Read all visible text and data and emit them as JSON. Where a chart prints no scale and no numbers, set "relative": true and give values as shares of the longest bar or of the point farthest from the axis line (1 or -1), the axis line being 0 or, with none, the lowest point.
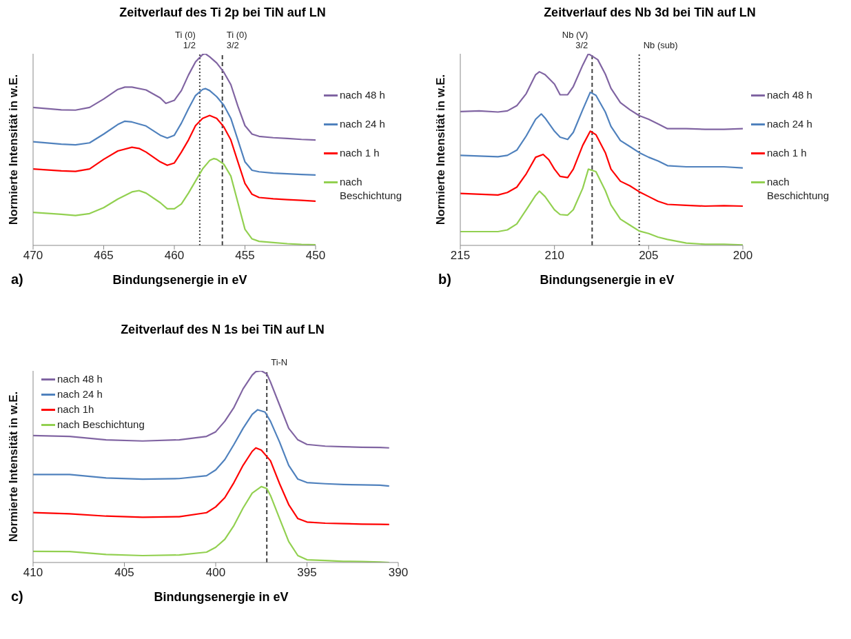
{
  "chart_data": [
    {
      "type": "line",
      "title": "Zeitverlauf des Ti 2p bei TiN auf LN",
      "xlabel": "Bindungsenergie in eV",
      "ylabel": "Normierte Intensität in w.E.",
      "relative": true,
      "xlim": [
        470,
        450
      ],
      "xticks": [
        470,
        465,
        460,
        455,
        450
      ],
      "legend": "right",
      "annotations": [
        "a)"
      ],
      "ref_lines": [
        {
          "axis": "x",
          "value": 458.2,
          "label": "Ti (0)\n1/2",
          "line_style": "dotted",
          "color": "#404040"
        },
        {
          "axis": "x",
          "value": 456.6,
          "label": "Ti (0)\n3/2",
          "line_style": "dashed",
          "color": "#404040"
        }
      ],
      "series": [
        {
          "name": "nach 48 h",
          "color": "#8064a2",
          "x": [
            470,
            468,
            467,
            466,
            465,
            464,
            463.5,
            463,
            462,
            461,
            460.6,
            460,
            459.5,
            459,
            458.5,
            458,
            457.8,
            457.5,
            457,
            456.5,
            456,
            455.5,
            455,
            454.5,
            454,
            453,
            452,
            451,
            450
          ],
          "values": [
            0.72,
            0.707,
            0.706,
            0.72,
            0.764,
            0.814,
            0.826,
            0.826,
            0.811,
            0.77,
            0.741,
            0.757,
            0.808,
            0.889,
            0.958,
            0.996,
            1,
            0.984,
            0.952,
            0.904,
            0.839,
            0.726,
            0.625,
            0.581,
            0.569,
            0.562,
            0.558,
            0.553,
            0.55
          ]
        },
        {
          "name": "nach 24 h",
          "color": "#4f81bd",
          "x": [
            470,
            468,
            467,
            466,
            465,
            464,
            463.5,
            463,
            462,
            461,
            460.5,
            460,
            459.5,
            459,
            458.5,
            458,
            457.8,
            457.5,
            457,
            456.5,
            456,
            455.5,
            455,
            454.5,
            454,
            453,
            452,
            451,
            450
          ],
          "values": [
            0.541,
            0.528,
            0.525,
            0.535,
            0.581,
            0.631,
            0.648,
            0.644,
            0.623,
            0.575,
            0.56,
            0.575,
            0.638,
            0.713,
            0.782,
            0.814,
            0.818,
            0.808,
            0.776,
            0.732,
            0.663,
            0.55,
            0.436,
            0.392,
            0.384,
            0.377,
            0.374,
            0.37,
            0.367
          ]
        },
        {
          "name": "nach 1 h",
          "color": "#ff0000",
          "x": [
            470,
            468,
            467,
            466,
            465,
            464,
            463,
            462.5,
            462,
            461,
            460.5,
            460,
            459.5,
            459,
            458.5,
            458,
            457.5,
            457,
            456.5,
            456,
            455.5,
            455,
            454.5,
            454,
            453,
            452,
            451,
            450
          ],
          "values": [
            0.399,
            0.389,
            0.386,
            0.399,
            0.449,
            0.493,
            0.512,
            0.506,
            0.487,
            0.436,
            0.418,
            0.43,
            0.487,
            0.55,
            0.625,
            0.663,
            0.678,
            0.663,
            0.619,
            0.55,
            0.436,
            0.323,
            0.267,
            0.25,
            0.243,
            0.239,
            0.235,
            0.231
          ]
        },
        {
          "name": "nach\nBeschichtung",
          "color": "#92d050",
          "x": [
            470,
            468,
            467,
            466,
            465,
            464,
            463,
            462.5,
            462,
            461,
            460.5,
            460,
            459.5,
            459,
            458.5,
            458,
            457.5,
            457.2,
            457,
            456.5,
            456,
            455.5,
            455,
            454.5,
            454,
            453,
            452,
            451,
            450
          ],
          "values": [
            0.172,
            0.162,
            0.156,
            0.166,
            0.197,
            0.242,
            0.279,
            0.286,
            0.273,
            0.223,
            0.191,
            0.191,
            0.216,
            0.273,
            0.336,
            0.399,
            0.443,
            0.453,
            0.449,
            0.424,
            0.362,
            0.223,
            0.084,
            0.034,
            0.021,
            0.015,
            0.009,
            0.005,
            0.003
          ]
        }
      ]
    },
    {
      "type": "line",
      "title": "Zeitverlauf des Nb 3d bei TiN auf LN",
      "xlabel": "Bindungsenergie in eV",
      "ylabel": "Normierte Intensität in w.E.",
      "relative": true,
      "xlim": [
        215,
        200
      ],
      "xticks": [
        215,
        210,
        205,
        200
      ],
      "legend": "right",
      "annotations": [
        "b)"
      ],
      "ref_lines": [
        {
          "axis": "x",
          "value": 208,
          "label": "Nb (V)\n3/2",
          "line_style": "dashed",
          "color": "#404040"
        },
        {
          "axis": "x",
          "value": 205.5,
          "label": "Nb (sub)",
          "line_style": "dotted",
          "color": "#404040"
        }
      ],
      "series": [
        {
          "name": "nach 48 h",
          "color": "#8064a2",
          "x": [
            215,
            214,
            213,
            212.5,
            212,
            211.5,
            211,
            210.8,
            210.5,
            210,
            209.7,
            209.3,
            209,
            208.5,
            208.2,
            208,
            207.7,
            207.3,
            207,
            206.5,
            206,
            205.5,
            205,
            204.5,
            204,
            203,
            202,
            201,
            200
          ],
          "values": [
            0.698,
            0.702,
            0.696,
            0.702,
            0.729,
            0.792,
            0.891,
            0.906,
            0.891,
            0.842,
            0.786,
            0.786,
            0.829,
            0.941,
            1,
            0.988,
            0.969,
            0.894,
            0.82,
            0.745,
            0.708,
            0.677,
            0.658,
            0.634,
            0.609,
            0.609,
            0.606,
            0.606,
            0.609
          ]
        },
        {
          "name": "nach 24 h",
          "color": "#4f81bd",
          "x": [
            215,
            213,
            212.5,
            212,
            211.5,
            211,
            210.7,
            210.5,
            210,
            209.7,
            209.3,
            209,
            208.5,
            208.1,
            207.8,
            207.3,
            207,
            206.5,
            206,
            205.5,
            205,
            204.5,
            204,
            203,
            202,
            201,
            200
          ],
          "values": [
            0.47,
            0.463,
            0.47,
            0.497,
            0.571,
            0.658,
            0.686,
            0.665,
            0.596,
            0.565,
            0.553,
            0.59,
            0.708,
            0.799,
            0.783,
            0.696,
            0.621,
            0.547,
            0.516,
            0.484,
            0.46,
            0.441,
            0.416,
            0.41,
            0.41,
            0.41,
            0.404
          ]
        },
        {
          "name": "nach 1 h",
          "color": "#ff0000",
          "x": [
            215,
            213,
            212.5,
            212,
            211.5,
            211,
            210.6,
            210.3,
            210,
            209.7,
            209.3,
            209,
            208.5,
            208.1,
            207.8,
            207.3,
            207,
            206.5,
            206,
            205.5,
            205,
            204.5,
            204,
            203,
            202,
            201,
            200
          ],
          "values": [
            0.271,
            0.263,
            0.276,
            0.304,
            0.373,
            0.46,
            0.475,
            0.447,
            0.398,
            0.36,
            0.354,
            0.398,
            0.522,
            0.596,
            0.578,
            0.484,
            0.398,
            0.335,
            0.311,
            0.28,
            0.255,
            0.23,
            0.214,
            0.209,
            0.205,
            0.207,
            0.205
          ]
        },
        {
          "name": "nach\nBeschichtung",
          "color": "#92d050",
          "x": [
            215,
            213,
            212.5,
            212,
            211.5,
            211,
            210.8,
            210.5,
            210,
            209.7,
            209.3,
            209,
            208.5,
            208.2,
            207.8,
            207.3,
            207,
            206.5,
            206,
            205.5,
            205,
            204.5,
            204,
            203,
            202,
            201,
            200
          ],
          "values": [
            0.072,
            0.072,
            0.081,
            0.112,
            0.186,
            0.261,
            0.283,
            0.255,
            0.186,
            0.161,
            0.158,
            0.186,
            0.298,
            0.398,
            0.385,
            0.286,
            0.211,
            0.137,
            0.106,
            0.075,
            0.062,
            0.043,
            0.031,
            0.012,
            0.006,
            0.006,
            0.002
          ]
        }
      ]
    },
    {
      "type": "line",
      "title": "Zeitverlauf des N 1s bei TiN auf LN",
      "xlabel": "Bindungsenergie in eV",
      "ylabel": "Normierte Intensität in w.E.",
      "relative": true,
      "xlim": [
        410,
        390
      ],
      "xticks": [
        410,
        405,
        400,
        395,
        390
      ],
      "legend": "top left",
      "annotations": [
        "c)"
      ],
      "ref_lines": [
        {
          "axis": "x",
          "value": 397.2,
          "label": "Ti-N",
          "line_style": "dashed",
          "color": "#404040"
        }
      ],
      "series": [
        {
          "name": "nach 48 h",
          "color": "#8064a2",
          "x": [
            410,
            408,
            406,
            404,
            402,
            400.5,
            400,
            399.5,
            399,
            398.5,
            398,
            397.8,
            397.5,
            397.2,
            397,
            396.5,
            396,
            395.5,
            395,
            394,
            393,
            392,
            391,
            390.5
          ],
          "values": [
            0.662,
            0.658,
            0.64,
            0.634,
            0.64,
            0.658,
            0.682,
            0.737,
            0.809,
            0.906,
            0.978,
            0.996,
            1,
            0.984,
            0.942,
            0.821,
            0.7,
            0.64,
            0.616,
            0.607,
            0.604,
            0.601,
            0.6,
            0.598
          ]
        },
        {
          "name": "nach 24 h",
          "color": "#4f81bd",
          "x": [
            410,
            408,
            406,
            404,
            402,
            400.5,
            400,
            399.5,
            399,
            398.5,
            398,
            397.7,
            397.3,
            397,
            396.5,
            396,
            395.5,
            395,
            394,
            393,
            392,
            391,
            390.5
          ],
          "values": [
            0.459,
            0.459,
            0.441,
            0.435,
            0.438,
            0.453,
            0.483,
            0.537,
            0.616,
            0.7,
            0.773,
            0.797,
            0.785,
            0.737,
            0.628,
            0.507,
            0.435,
            0.417,
            0.411,
            0.407,
            0.405,
            0.403,
            0.399
          ]
        },
        {
          "name": "nach 1h",
          "color": "#ff0000",
          "x": [
            410,
            408,
            406,
            404,
            402,
            400.5,
            400,
            399.5,
            399,
            398.5,
            398,
            397.8,
            397.5,
            397,
            396.5,
            396,
            395.5,
            395,
            394,
            393,
            392,
            391,
            390.5
          ],
          "values": [
            0.26,
            0.254,
            0.242,
            0.236,
            0.239,
            0.26,
            0.29,
            0.338,
            0.417,
            0.507,
            0.58,
            0.598,
            0.586,
            0.531,
            0.411,
            0.302,
            0.229,
            0.211,
            0.205,
            0.203,
            0.2,
            0.199,
            0.198
          ]
        },
        {
          "name": "nach Beschichtung",
          "color": "#92d050",
          "x": [
            410,
            408,
            406,
            404,
            402,
            400.5,
            400,
            399.5,
            399,
            398.5,
            398,
            397.5,
            397.2,
            397,
            396.5,
            396,
            395.5,
            395,
            394,
            393,
            392,
            391,
            390.5
          ],
          "values": [
            0.058,
            0.057,
            0.042,
            0.036,
            0.039,
            0.054,
            0.079,
            0.121,
            0.193,
            0.284,
            0.362,
            0.396,
            0.386,
            0.35,
            0.229,
            0.109,
            0.036,
            0.014,
            0.01,
            0.006,
            0.005,
            0.002,
            0
          ]
        }
      ]
    }
  ]
}
